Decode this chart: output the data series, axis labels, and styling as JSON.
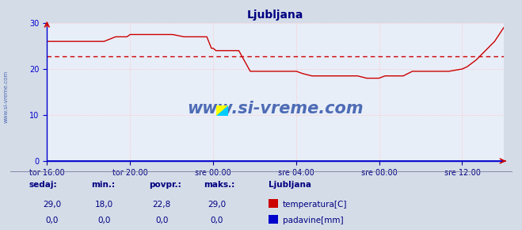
{
  "title": "Ljubljana",
  "title_color": "#000080",
  "bg_color": "#d4dce8",
  "plot_bg_color": "#e8eef8",
  "grid_color": "#ffbbbb",
  "xlim": [
    0,
    1
  ],
  "ylim": [
    0,
    30
  ],
  "yticks": [
    0,
    10,
    20,
    30
  ],
  "xtick_labels": [
    "tor 16:00",
    "tor 20:00",
    "sre 00:00",
    "sre 04:00",
    "sre 08:00",
    "sre 12:00"
  ],
  "xtick_positions": [
    0.0,
    0.182,
    0.364,
    0.546,
    0.727,
    0.909
  ],
  "avg_line_y": 22.8,
  "avg_line_color": "#cc0000",
  "temp_color": "#cc0000",
  "padavine_color": "#0000cc",
  "watermark_text": "www.si-vreme.com",
  "watermark_color": "#3355aa",
  "left_label": "www.si-vreme.com",
  "left_label_color": "#3355aa",
  "arrow_color": "#cc0000",
  "yaxis_color": "#0000cc",
  "temp_data_x": [
    0.0,
    0.025,
    0.05,
    0.075,
    0.1,
    0.125,
    0.15,
    0.175,
    0.182,
    0.2,
    0.225,
    0.25,
    0.275,
    0.3,
    0.325,
    0.35,
    0.36,
    0.364,
    0.37,
    0.395,
    0.42,
    0.445,
    0.47,
    0.495,
    0.52,
    0.546,
    0.56,
    0.58,
    0.61,
    0.64,
    0.66,
    0.68,
    0.7,
    0.72,
    0.727,
    0.74,
    0.76,
    0.78,
    0.8,
    0.82,
    0.84,
    0.86,
    0.88,
    0.909,
    0.92,
    0.94,
    0.96,
    0.98,
    1.0
  ],
  "temp_data_y": [
    26.0,
    26.0,
    26.0,
    26.0,
    26.0,
    26.0,
    27.0,
    27.0,
    27.5,
    27.5,
    27.5,
    27.5,
    27.5,
    27.0,
    27.0,
    27.0,
    24.5,
    24.5,
    24.0,
    24.0,
    24.0,
    19.5,
    19.5,
    19.5,
    19.5,
    19.5,
    19.0,
    18.5,
    18.5,
    18.5,
    18.5,
    18.5,
    18.0,
    18.0,
    18.0,
    18.5,
    18.5,
    18.5,
    19.5,
    19.5,
    19.5,
    19.5,
    19.5,
    20.0,
    20.5,
    22.0,
    24.0,
    26.0,
    29.0
  ],
  "padavine_data_x": [
    0.0,
    1.0
  ],
  "padavine_data_y": [
    0.0,
    0.0
  ],
  "legend_title": "Ljubljana",
  "legend_items": [
    {
      "label": "temperatura[C]",
      "color": "#cc0000"
    },
    {
      "label": "padavine[mm]",
      "color": "#0000cc"
    }
  ],
  "table_headers": [
    "sedaj:",
    "min.:",
    "povpr.:",
    "maks.:"
  ],
  "table_values": [
    [
      "29,0",
      "18,0",
      "22,8",
      "29,0"
    ],
    [
      "0,0",
      "0,0",
      "0,0",
      "0,0"
    ]
  ],
  "label_color": "#000080"
}
